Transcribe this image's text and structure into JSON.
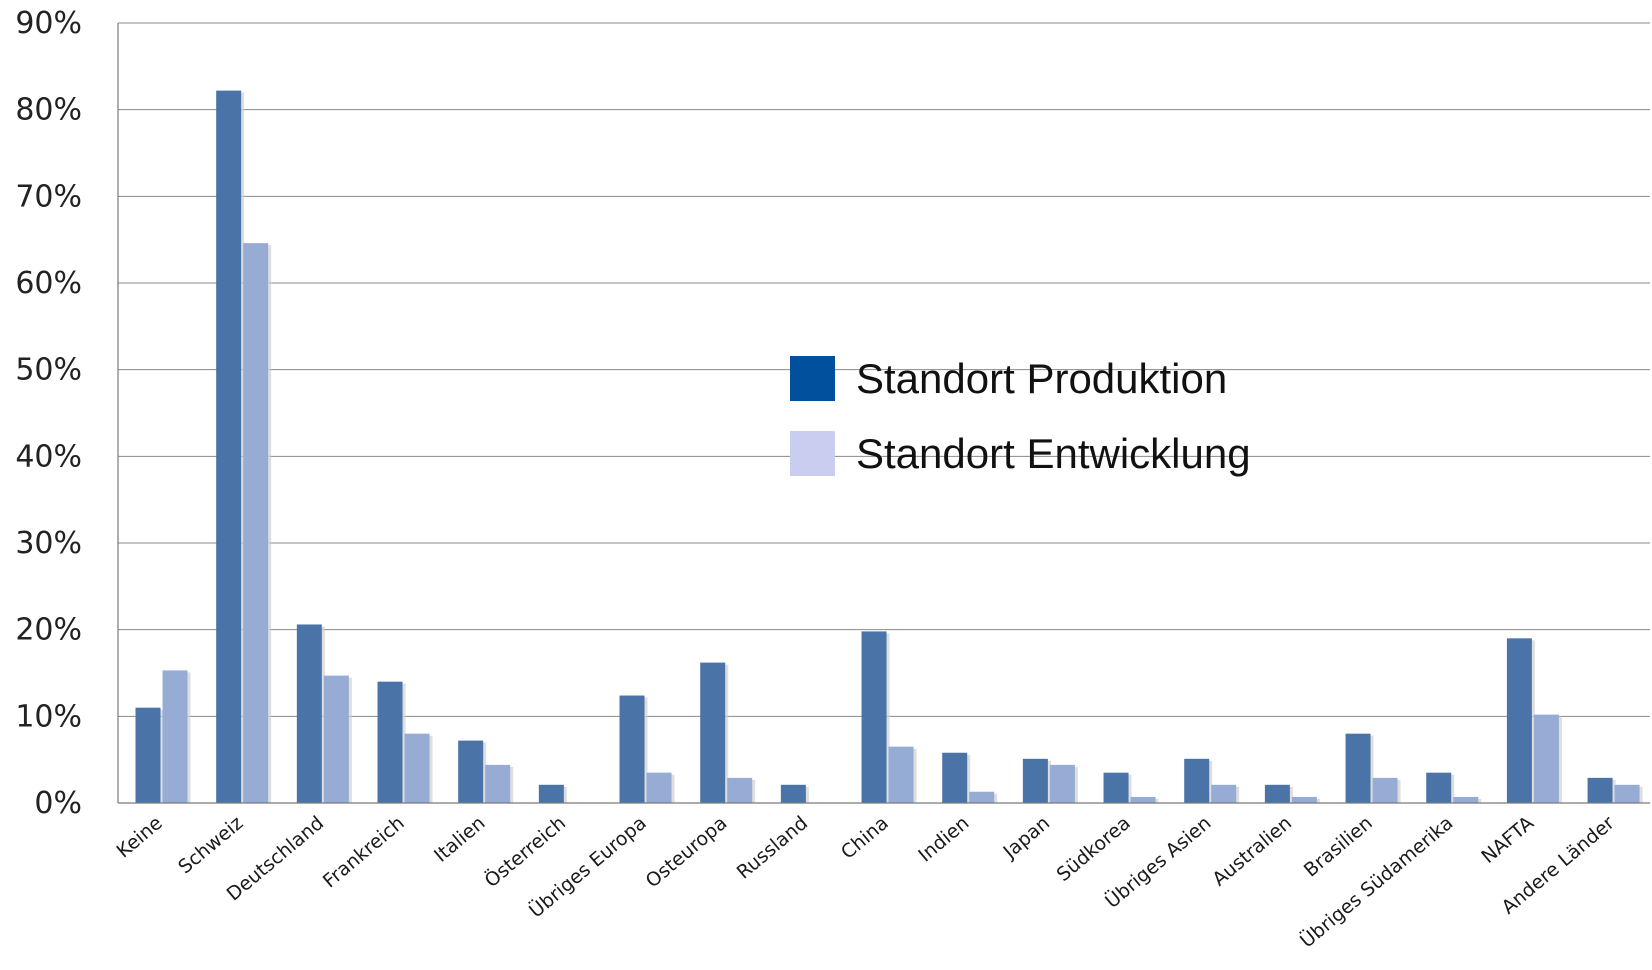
{
  "chart_data": {
    "type": "bar",
    "categories": [
      "Keine",
      "Schweiz",
      "Deutschland",
      "Frankreich",
      "Italien",
      "Österreich",
      "Übriges Europa",
      "Osteuropa",
      "Russland",
      "China",
      "Indien",
      "Japan",
      "Südkorea",
      "Übriges Asien",
      "Australien",
      "Brasilien",
      "Übriges Südamerika",
      "NAFTA",
      "Andere Länder"
    ],
    "series": [
      {
        "name": "Standort Produktion",
        "color": "#4a74a8",
        "values": [
          11,
          82.2,
          20.6,
          14,
          7.2,
          2.1,
          12.4,
          16.2,
          2.1,
          19.8,
          5.8,
          5.1,
          3.5,
          5.1,
          2.1,
          8,
          3.5,
          19,
          2.9
        ]
      },
      {
        "name": "Standort Entwicklung",
        "color": "#97acd4",
        "values": [
          15.3,
          64.6,
          14.7,
          8,
          4.4,
          0,
          3.5,
          2.9,
          0,
          6.5,
          1.3,
          4.4,
          0.7,
          2.1,
          0.7,
          2.9,
          0.7,
          10.2,
          2.1
        ]
      }
    ],
    "yticks": [
      "0%",
      "10%",
      "20%",
      "30%",
      "40%",
      "50%",
      "60%",
      "70%",
      "80%",
      "90%"
    ],
    "ylim": [
      0,
      90
    ],
    "unit": "%",
    "grid": true,
    "legend": {
      "position": "center",
      "items": [
        {
          "label": "Standort Produktion",
          "color": "#00509e"
        },
        {
          "label": "Standort Entwicklung",
          "color": "#c9cdef"
        }
      ]
    },
    "title": "",
    "xlabel": "",
    "ylabel": ""
  }
}
